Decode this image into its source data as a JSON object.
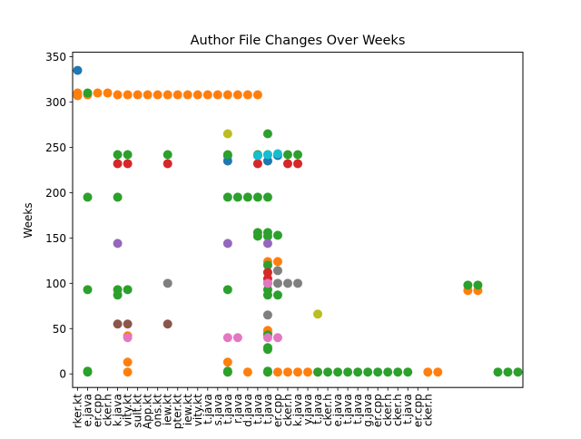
{
  "chart_data": {
    "type": "scatter",
    "title": "Author File Changes Over Weeks",
    "xlabel": "",
    "ylabel": "Weeks",
    "ylim": [
      -15,
      355
    ],
    "yticks": [
      0,
      50,
      100,
      150,
      200,
      250,
      300,
      350
    ],
    "grid": false,
    "x_ticklabels": [
      "rker.kt",
      "e.java",
      "er.cpp",
      "cker.h",
      "k.java",
      "vity.kt",
      "sult.kt",
      "App.kt",
      "ons.kt",
      "iew.kt",
      "pter.kt",
      "iew.kt",
      "vity.kt",
      "t.java",
      "s.java",
      "t.java",
      "r.java",
      "d.java",
      "t.java",
      "t.java",
      "er.cpp",
      "cker.h",
      "k.java",
      "y.java",
      "t.java",
      "cker.h",
      "e.java",
      "t.java",
      "t.java",
      "g.java",
      "er.cpp",
      "cker.h",
      "cker.h",
      "t.java",
      "er.cpp",
      "cker.h"
    ],
    "series": [
      {
        "color": "#1f77b4",
        "points": [
          [
            0,
            335
          ],
          [
            15,
            241
          ],
          [
            15,
            235
          ],
          [
            18,
            241
          ],
          [
            19,
            235
          ],
          [
            20,
            241
          ]
        ]
      },
      {
        "color": "#ff7f0e",
        "points": [
          [
            0,
            310
          ],
          [
            0,
            307
          ],
          [
            1,
            308
          ],
          [
            2,
            310
          ],
          [
            3,
            310
          ],
          [
            4,
            308
          ],
          [
            5,
            308
          ],
          [
            6,
            308
          ],
          [
            7,
            308
          ],
          [
            8,
            308
          ],
          [
            9,
            308
          ],
          [
            10,
            308
          ],
          [
            11,
            308
          ],
          [
            12,
            308
          ],
          [
            13,
            308
          ],
          [
            14,
            308
          ],
          [
            15,
            308
          ],
          [
            16,
            308
          ],
          [
            17,
            308
          ],
          [
            18,
            308
          ],
          [
            19,
            124
          ],
          [
            20,
            124
          ],
          [
            5,
            42
          ],
          [
            5,
            13
          ],
          [
            5,
            2
          ],
          [
            15,
            13
          ],
          [
            15,
            2
          ],
          [
            17,
            2
          ],
          [
            19,
            48
          ],
          [
            19,
            45
          ],
          [
            19,
            2
          ],
          [
            20,
            2
          ],
          [
            21,
            2
          ],
          [
            22,
            2
          ],
          [
            23,
            2
          ],
          [
            24,
            2
          ],
          [
            35,
            2
          ],
          [
            36,
            2
          ],
          [
            39,
            92
          ],
          [
            40,
            92
          ]
        ]
      },
      {
        "color": "#2ca02c",
        "points": [
          [
            1,
            310
          ],
          [
            1,
            195
          ],
          [
            1,
            93
          ],
          [
            1,
            3
          ],
          [
            1,
            2
          ],
          [
            4,
            242
          ],
          [
            4,
            195
          ],
          [
            4,
            93
          ],
          [
            4,
            87
          ],
          [
            5,
            242
          ],
          [
            5,
            93
          ],
          [
            9,
            242
          ],
          [
            15,
            242
          ],
          [
            15,
            195
          ],
          [
            15,
            93
          ],
          [
            15,
            3
          ],
          [
            15,
            2
          ],
          [
            16,
            195
          ],
          [
            17,
            195
          ],
          [
            18,
            242
          ],
          [
            18,
            195
          ],
          [
            18,
            156
          ],
          [
            18,
            152
          ],
          [
            19,
            265
          ],
          [
            19,
            242
          ],
          [
            19,
            195
          ],
          [
            19,
            156
          ],
          [
            19,
            152
          ],
          [
            19,
            120
          ],
          [
            19,
            100
          ],
          [
            19,
            93
          ],
          [
            19,
            87
          ],
          [
            19,
            43
          ],
          [
            19,
            29
          ],
          [
            19,
            27
          ],
          [
            19,
            3
          ],
          [
            19,
            2
          ],
          [
            20,
            153
          ],
          [
            20,
            87
          ],
          [
            21,
            242
          ],
          [
            22,
            242
          ],
          [
            24,
            2
          ],
          [
            25,
            2
          ],
          [
            26,
            2
          ],
          [
            27,
            2
          ],
          [
            28,
            2
          ],
          [
            29,
            2
          ],
          [
            30,
            2
          ],
          [
            31,
            2
          ],
          [
            32,
            2
          ],
          [
            33,
            2
          ],
          [
            39,
            98
          ],
          [
            40,
            98
          ],
          [
            42,
            2
          ],
          [
            43,
            2
          ],
          [
            44,
            2
          ]
        ]
      },
      {
        "color": "#d62728",
        "points": [
          [
            4,
            232
          ],
          [
            5,
            232
          ],
          [
            9,
            232
          ],
          [
            18,
            232
          ],
          [
            19,
            112
          ],
          [
            19,
            105
          ],
          [
            21,
            232
          ],
          [
            22,
            232
          ]
        ]
      },
      {
        "color": "#9467bd",
        "points": [
          [
            4,
            144
          ],
          [
            15,
            144
          ],
          [
            19,
            144
          ]
        ]
      },
      {
        "color": "#8c564b",
        "points": [
          [
            4,
            55
          ],
          [
            5,
            55
          ],
          [
            9,
            55
          ]
        ]
      },
      {
        "color": "#e377c2",
        "points": [
          [
            5,
            40
          ],
          [
            15,
            40
          ],
          [
            16,
            40
          ],
          [
            19,
            100
          ],
          [
            19,
            40
          ],
          [
            20,
            40
          ]
        ]
      },
      {
        "color": "#7f7f7f",
        "points": [
          [
            9,
            100
          ],
          [
            19,
            65
          ],
          [
            20,
            114
          ],
          [
            20,
            100
          ],
          [
            21,
            100
          ],
          [
            22,
            100
          ]
        ]
      },
      {
        "color": "#bcbd22",
        "points": [
          [
            15,
            265
          ],
          [
            24,
            66
          ]
        ]
      },
      {
        "color": "#17becf",
        "points": [
          [
            18,
            241
          ],
          [
            19,
            242
          ],
          [
            20,
            243
          ]
        ]
      }
    ]
  }
}
